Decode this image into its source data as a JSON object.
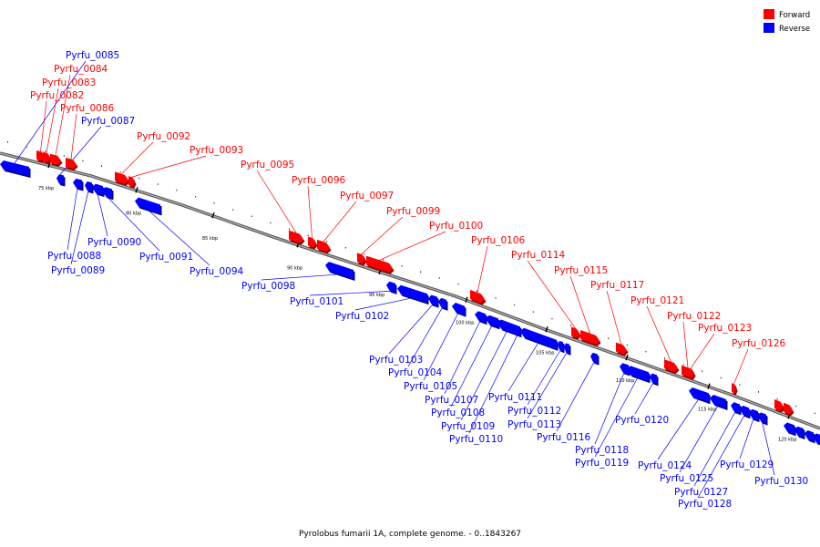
{
  "caption": "Pyrolobus fumarii 1A, complete genome. - 0..1843267",
  "colors": {
    "forward": "#ff0000",
    "reverse": "#0000ff",
    "backbone": "#888888"
  },
  "legend": [
    {
      "label": "Forward",
      "color": "#ff0000"
    },
    {
      "label": "Reverse",
      "color": "#0000ff"
    }
  ],
  "ticks": [
    "75 kbp",
    "80 kbp",
    "85 kbp",
    "90 kbp",
    "95 kbp",
    "100 kbp",
    "105 kbp",
    "110 kbp",
    "115 kbp",
    "120 kbp"
  ],
  "forward_genes": [
    "Pyrfu_0082",
    "Pyrfu_0083",
    "Pyrfu_0084",
    "Pyrfu_0086",
    "Pyrfu_0092",
    "Pyrfu_0093",
    "Pyrfu_0095",
    "Pyrfu_0096",
    "Pyrfu_0097",
    "Pyrfu_0099",
    "Pyrfu_0100",
    "Pyrfu_0106",
    "Pyrfu_0114",
    "Pyrfu_0115",
    "Pyrfu_0117",
    "Pyrfu_0121",
    "Pyrfu_0122",
    "Pyrfu_0123",
    "Pyrfu_0126"
  ],
  "reverse_genes": [
    "Pyrfu_0085",
    "Pyrfu_0087",
    "Pyrfu_0088",
    "Pyrfu_0089",
    "Pyrfu_0090",
    "Pyrfu_0091",
    "Pyrfu_0094",
    "Pyrfu_0098",
    "Pyrfu_0101",
    "Pyrfu_0102",
    "Pyrfu_0103",
    "Pyrfu_0104",
    "Pyrfu_0105",
    "Pyrfu_0107",
    "Pyrfu_0108",
    "Pyrfu_0109",
    "Pyrfu_0110",
    "Pyrfu_0111",
    "Pyrfu_0112",
    "Pyrfu_0113",
    "Pyrfu_0116",
    "Pyrfu_0118",
    "Pyrfu_0119",
    "Pyrfu_0120",
    "Pyrfu_0124",
    "Pyrfu_0125",
    "Pyrfu_0127",
    "Pyrfu_0128",
    "Pyrfu_0129",
    "Pyrfu_0130"
  ]
}
